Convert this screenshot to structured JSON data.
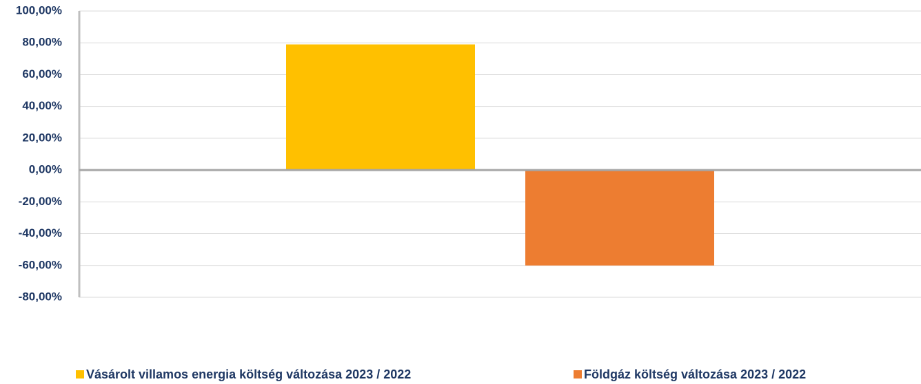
{
  "chart_data": {
    "type": "bar",
    "categories": [
      null
    ],
    "series": [
      {
        "name": "Vásárolt villamos energia költség  változása 2023  / 2022",
        "color": "#ffc000",
        "values": [
          79
        ]
      },
      {
        "name": "Földgáz költség  változása 2023  / 2022",
        "color": "#ed7d31",
        "values": [
          -60
        ]
      }
    ],
    "ylim": [
      -80,
      100
    ],
    "yticks": [
      {
        "value": -80,
        "label": "-80,00%"
      },
      {
        "value": -60,
        "label": "-60,00%"
      },
      {
        "value": -40,
        "label": "-40,00%"
      },
      {
        "value": -20,
        "label": "-20,00%"
      },
      {
        "value": 0,
        "label": "0,00%"
      },
      {
        "value": 20,
        "label": "20,00%"
      },
      {
        "value": 40,
        "label": "40,00%"
      },
      {
        "value": 60,
        "label": "60,00%"
      },
      {
        "value": 80,
        "label": "80,00%"
      },
      {
        "value": 100,
        "label": "100,00%"
      }
    ],
    "grid": true,
    "legend": "bottom"
  }
}
